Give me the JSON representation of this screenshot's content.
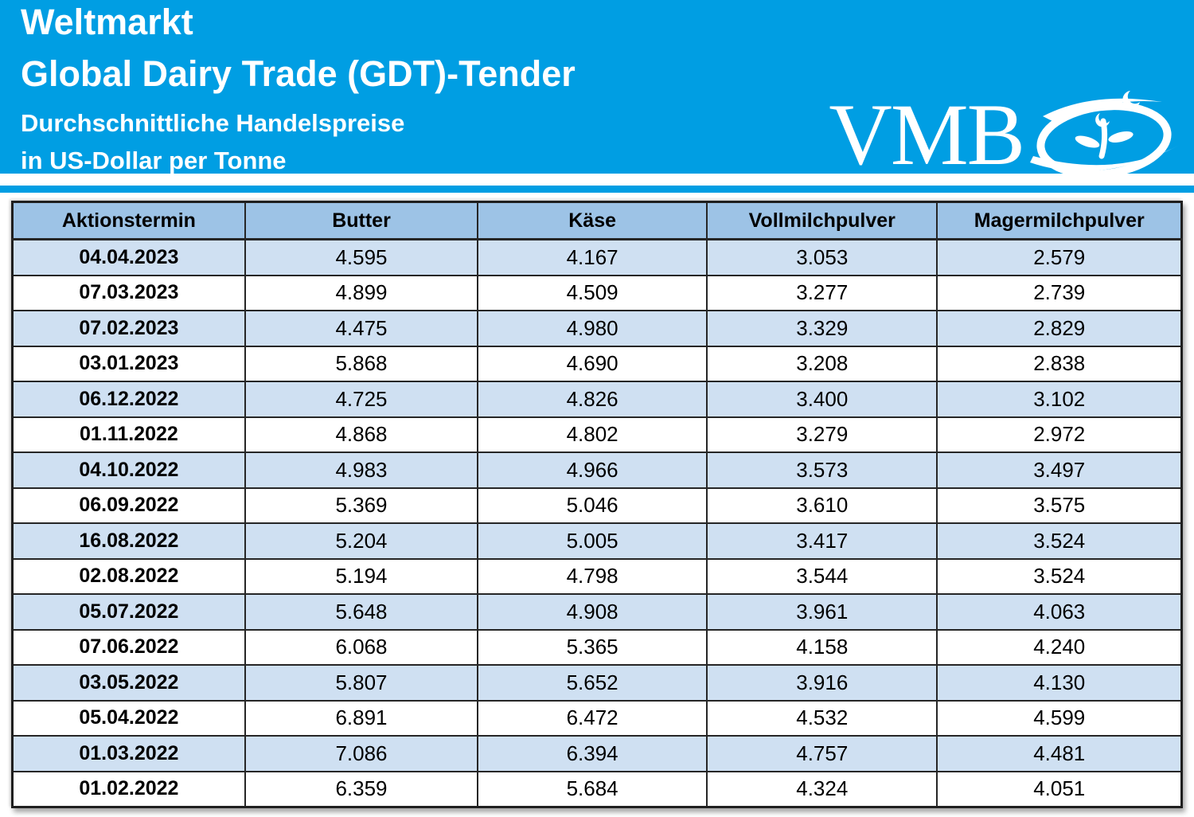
{
  "hero": {
    "title_line1": "Weltmarkt",
    "title_line2": "Global Dairy Trade (GDT)-Tender",
    "subtitle_line1": "Durchschnittliche Handelspreise",
    "subtitle_line2": "in US-Dollar per Tonne",
    "logo_text": "VMB",
    "background_color": "#009ee3",
    "text_color": "#ffffff"
  },
  "table": {
    "headers": [
      "Aktionstermin",
      "Butter",
      "Käse",
      "Vollmilchpulver",
      "Magermilchpulver"
    ],
    "rows": [
      {
        "date": "04.04.2023",
        "values": [
          "4.595",
          "4.167",
          "3.053",
          "2.579"
        ]
      },
      {
        "date": "07.03.2023",
        "values": [
          "4.899",
          "4.509",
          "3.277",
          "2.739"
        ]
      },
      {
        "date": "07.02.2023",
        "values": [
          "4.475",
          "4.980",
          "3.329",
          "2.829"
        ]
      },
      {
        "date": "03.01.2023",
        "values": [
          "5.868",
          "4.690",
          "3.208",
          "2.838"
        ]
      },
      {
        "date": "06.12.2022",
        "values": [
          "4.725",
          "4.826",
          "3.400",
          "3.102"
        ]
      },
      {
        "date": "01.11.2022",
        "values": [
          "4.868",
          "4.802",
          "3.279",
          "2.972"
        ]
      },
      {
        "date": "04.10.2022",
        "values": [
          "4.983",
          "4.966",
          "3.573",
          "3.497"
        ]
      },
      {
        "date": "06.09.2022",
        "values": [
          "5.369",
          "5.046",
          "3.610",
          "3.575"
        ]
      },
      {
        "date": "16.08.2022",
        "values": [
          "5.204",
          "5.005",
          "3.417",
          "3.524"
        ]
      },
      {
        "date": "02.08.2022",
        "values": [
          "5.194",
          "4.798",
          "3.544",
          "3.524"
        ]
      },
      {
        "date": "05.07.2022",
        "values": [
          "5.648",
          "4.908",
          "3.961",
          "4.063"
        ]
      },
      {
        "date": "07.06.2022",
        "values": [
          "6.068",
          "5.365",
          "4.158",
          "4.240"
        ]
      },
      {
        "date": "03.05.2022",
        "values": [
          "5.807",
          "5.652",
          "3.916",
          "4.130"
        ]
      },
      {
        "date": "05.04.2022",
        "values": [
          "6.891",
          "6.472",
          "4.532",
          "4.599"
        ]
      },
      {
        "date": "01.03.2022",
        "values": [
          "7.086",
          "6.394",
          "4.757",
          "4.481"
        ]
      },
      {
        "date": "01.02.2022",
        "values": [
          "6.359",
          "5.684",
          "4.324",
          "4.051"
        ]
      }
    ],
    "colors": {
      "header_row_bg": "#9dc3e6",
      "alt_row_bg": "#cfe0f2",
      "row_bg": "#ffffff",
      "border": "#262626"
    }
  }
}
